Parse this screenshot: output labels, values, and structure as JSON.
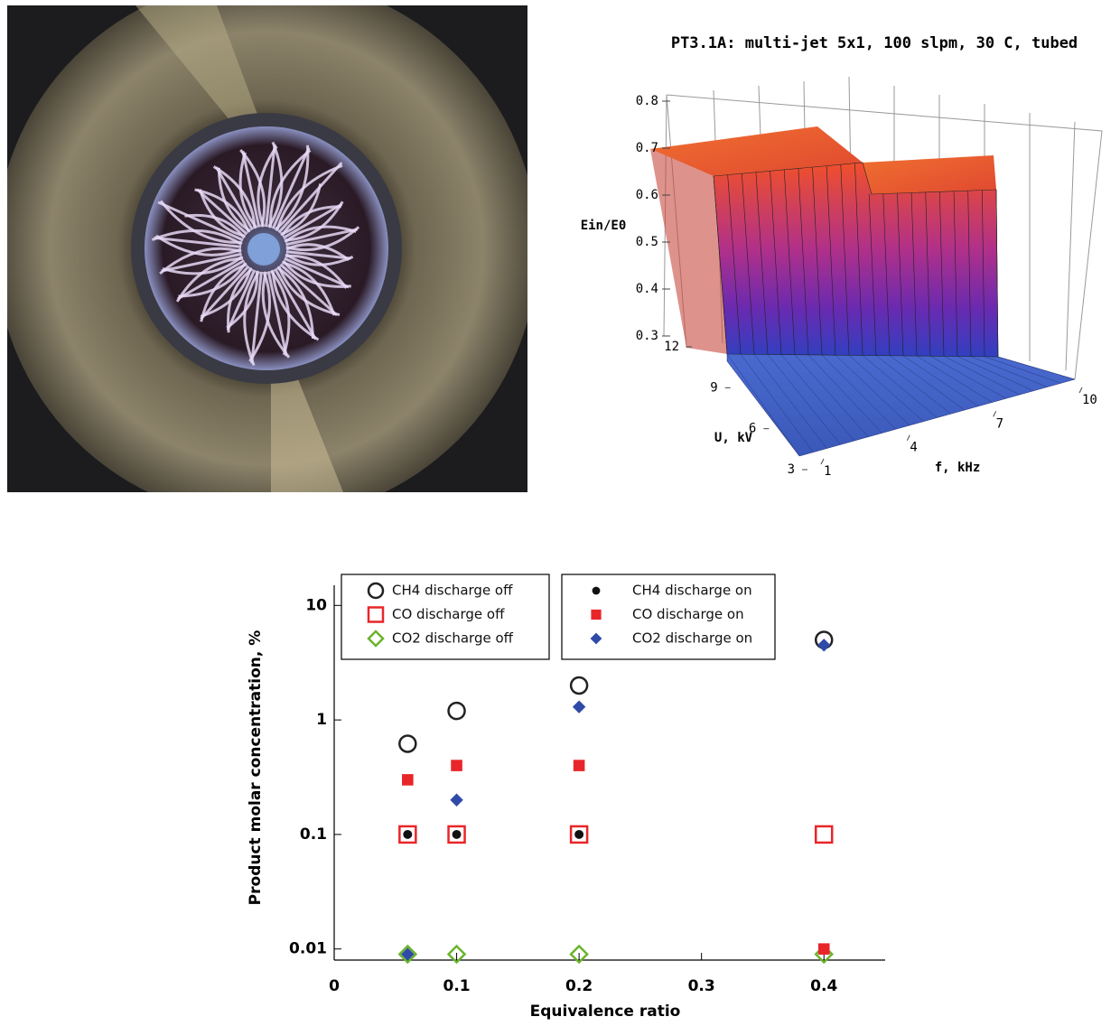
{
  "surface_chart": {
    "title": "PT3.1A: multi-jet 5x1, 100 slpm, 30 C, tubed",
    "zlabel": "Ein/E0",
    "ylabel": "U, kV",
    "xlabel": "f, kHz",
    "zlim": [
      0.3,
      0.8
    ],
    "zticks": [
      0.3,
      0.4,
      0.5,
      0.6,
      0.7,
      0.8
    ],
    "ylim": [
      3,
      12
    ],
    "yticks": [
      3,
      6,
      9,
      12
    ],
    "xlim": [
      1,
      10
    ],
    "xticks": [
      1,
      4,
      7,
      10
    ]
  },
  "chart_data": {
    "type": "scatter",
    "xlabel": "Equivalence ratio",
    "ylabel": "Product molar concentration, %",
    "xlim": [
      0,
      0.45
    ],
    "xticks": [
      0,
      0.1,
      0.2,
      0.3,
      0.4
    ],
    "ylim": [
      0.008,
      15
    ],
    "yticks": [
      0.01,
      0.1,
      1,
      10
    ],
    "log_y": true,
    "series": [
      {
        "name": "CH4 discharge off",
        "color": "#222222",
        "marker": "circle",
        "filled": false,
        "x": [
          0.06,
          0.1,
          0.2,
          0.4
        ],
        "values": [
          0.62,
          1.2,
          2.0,
          5.0
        ]
      },
      {
        "name": "CO discharge off",
        "color": "#e8262a",
        "marker": "square",
        "filled": false,
        "x": [
          0.06,
          0.1,
          0.2,
          0.4
        ],
        "values": [
          0.1,
          0.1,
          0.1,
          0.1
        ]
      },
      {
        "name": "CO2 discharge off",
        "color": "#6ab42d",
        "marker": "diamond",
        "filled": false,
        "x": [
          0.06,
          0.1,
          0.2,
          0.4
        ],
        "values": [
          0.009,
          0.009,
          0.009,
          0.009
        ]
      },
      {
        "name": "CH4 discharge on",
        "color": "#111111",
        "marker": "circle",
        "filled": true,
        "x": [
          0.06,
          0.1,
          0.2
        ],
        "values": [
          0.1,
          0.1,
          0.1
        ]
      },
      {
        "name": "CO discharge on",
        "color": "#e8262a",
        "marker": "square",
        "filled": true,
        "x": [
          0.06,
          0.1,
          0.2,
          0.4
        ],
        "values": [
          0.3,
          0.4,
          0.4,
          0.01
        ]
      },
      {
        "name": "CO2 discharge on",
        "color": "#2f4aa8",
        "marker": "diamond",
        "filled": true,
        "x": [
          0.06,
          0.1,
          0.2,
          0.4
        ],
        "values": [
          0.009,
          0.2,
          1.3,
          4.5
        ]
      }
    ]
  }
}
